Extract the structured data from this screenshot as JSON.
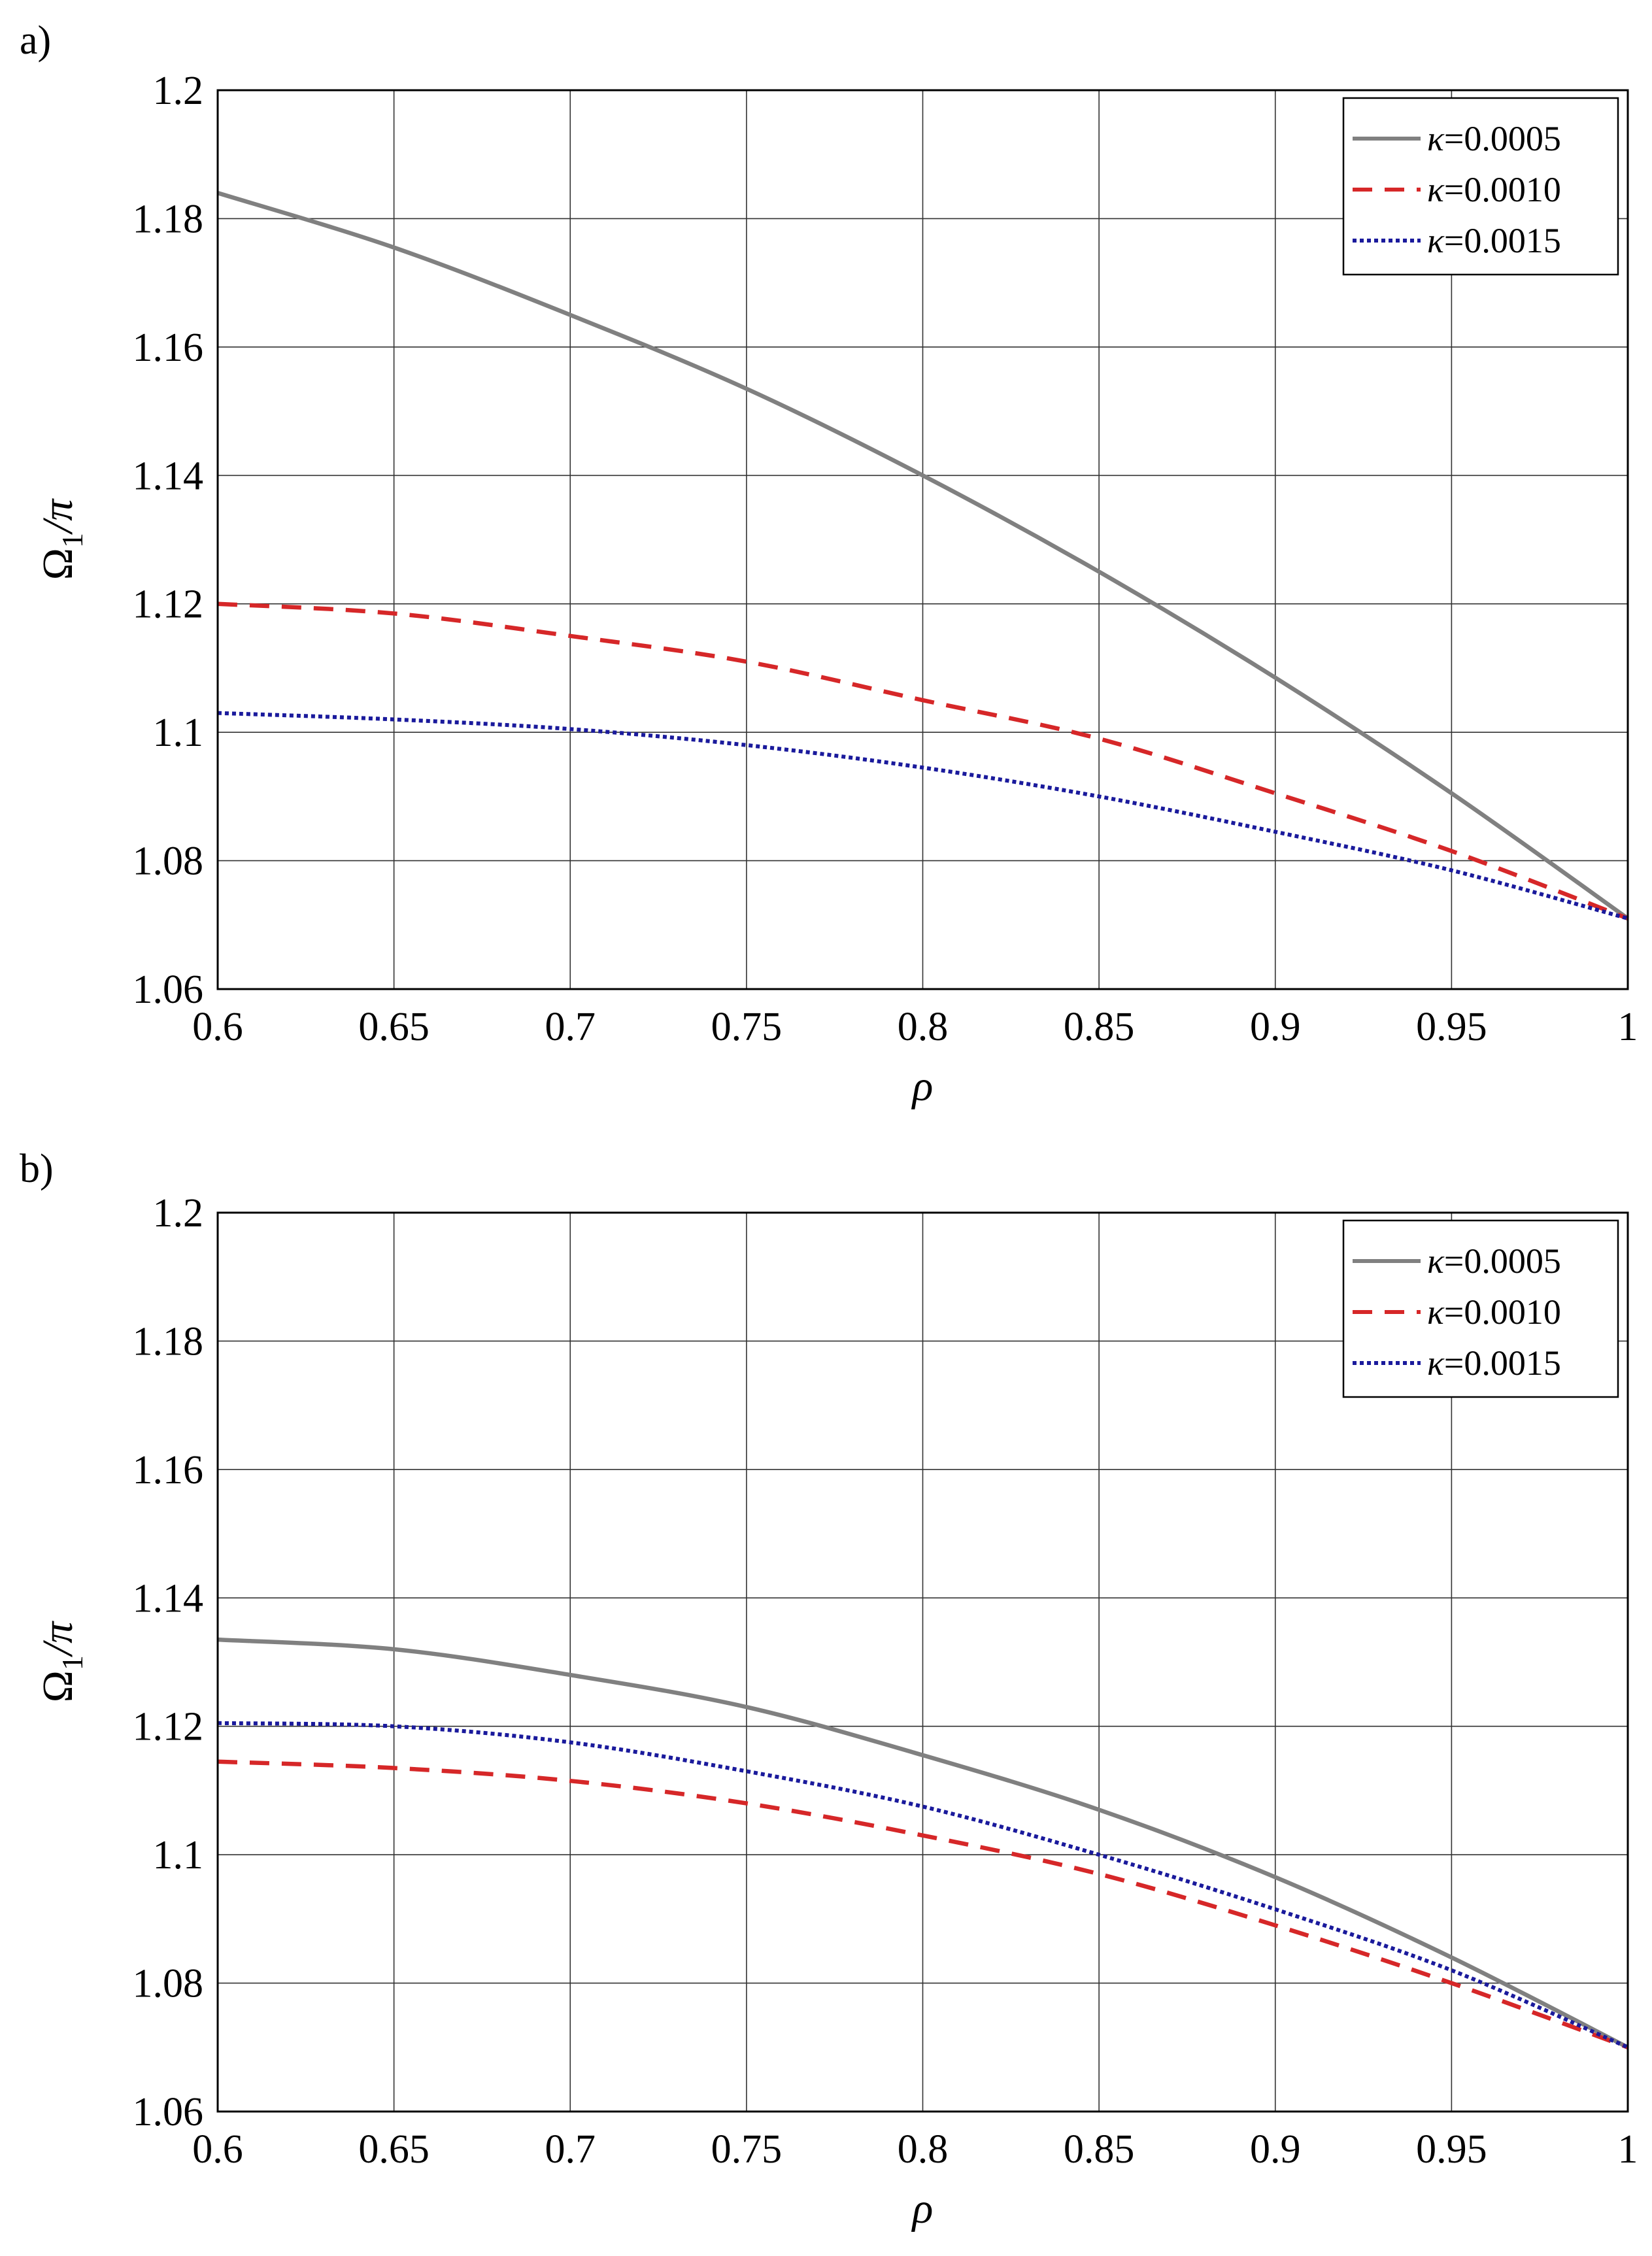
{
  "chart_data": [
    {
      "panel_label": "a)",
      "type": "line",
      "xlabel": "ρ",
      "ylabel_main": "Ω",
      "ylabel_sub": "1",
      "ylabel_tail": "/π",
      "xlim": [
        0.6,
        1.0
      ],
      "ylim": [
        1.06,
        1.2
      ],
      "grid": true,
      "legend_position": "top-right",
      "xticks": [
        0.6,
        0.65,
        0.7,
        0.75,
        0.8,
        0.85,
        0.9,
        0.95,
        1.0
      ],
      "xtick_labels": [
        "0.6",
        "0.65",
        "0.7",
        "0.75",
        "0.8",
        "0.85",
        "0.9",
        "0.95",
        "1"
      ],
      "yticks": [
        1.06,
        1.08,
        1.1,
        1.12,
        1.14,
        1.16,
        1.18,
        1.2
      ],
      "ytick_labels": [
        "1.06",
        "1.08",
        "1.1",
        "1.12",
        "1.14",
        "1.16",
        "1.18",
        "1.2"
      ],
      "x": [
        0.6,
        0.65,
        0.7,
        0.75,
        0.8,
        0.85,
        0.9,
        0.95,
        1.0
      ],
      "series": [
        {
          "name": "κ=0.0005",
          "legend_symbol": "κ",
          "legend_value": "=0.0005",
          "color": "#808080",
          "style": "solid",
          "values": [
            1.184,
            1.1755,
            1.165,
            1.1535,
            1.14,
            1.125,
            1.1085,
            1.0905,
            1.071
          ]
        },
        {
          "name": "κ=0.0010",
          "legend_symbol": "κ",
          "legend_value": "=0.0010",
          "color": "#d62728",
          "style": "dashed",
          "values": [
            1.12,
            1.1185,
            1.115,
            1.111,
            1.105,
            1.099,
            1.0905,
            1.0815,
            1.071
          ]
        },
        {
          "name": "κ=0.0015",
          "legend_symbol": "κ",
          "legend_value": "=0.0015",
          "color": "#1a1a9c",
          "style": "dotted",
          "values": [
            1.103,
            1.102,
            1.1005,
            1.098,
            1.0945,
            1.09,
            1.0845,
            1.0785,
            1.071
          ]
        }
      ]
    },
    {
      "panel_label": "b)",
      "type": "line",
      "xlabel": "ρ",
      "ylabel_main": "Ω",
      "ylabel_sub": "1",
      "ylabel_tail": "/π",
      "xlim": [
        0.6,
        1.0
      ],
      "ylim": [
        1.06,
        1.2
      ],
      "grid": true,
      "legend_position": "top-right",
      "xticks": [
        0.6,
        0.65,
        0.7,
        0.75,
        0.8,
        0.85,
        0.9,
        0.95,
        1.0
      ],
      "xtick_labels": [
        "0.6",
        "0.65",
        "0.7",
        "0.75",
        "0.8",
        "0.85",
        "0.9",
        "0.95",
        "1"
      ],
      "yticks": [
        1.06,
        1.08,
        1.1,
        1.12,
        1.14,
        1.16,
        1.18,
        1.2
      ],
      "ytick_labels": [
        "1.06",
        "1.08",
        "1.1",
        "1.12",
        "1.14",
        "1.16",
        "1.18",
        "1.2"
      ],
      "x": [
        0.6,
        0.65,
        0.7,
        0.75,
        0.8,
        0.85,
        0.9,
        0.95,
        1.0
      ],
      "series": [
        {
          "name": "κ=0.0005",
          "legend_symbol": "κ",
          "legend_value": "=0.0005",
          "color": "#808080",
          "style": "solid",
          "values": [
            1.1335,
            1.132,
            1.128,
            1.123,
            1.1155,
            1.107,
            1.0965,
            1.084,
            1.07
          ]
        },
        {
          "name": "κ=0.0010",
          "legend_symbol": "κ",
          "legend_value": "=0.0010",
          "color": "#d62728",
          "style": "dashed",
          "values": [
            1.1145,
            1.1135,
            1.1115,
            1.108,
            1.103,
            1.097,
            1.089,
            1.08,
            1.07
          ]
        },
        {
          "name": "κ=0.0015",
          "legend_symbol": "κ",
          "legend_value": "=0.0015",
          "color": "#1a1a9c",
          "style": "dotted",
          "values": [
            1.1205,
            1.12,
            1.1175,
            1.113,
            1.1075,
            1.1,
            1.0915,
            1.082,
            1.07
          ]
        }
      ]
    }
  ]
}
